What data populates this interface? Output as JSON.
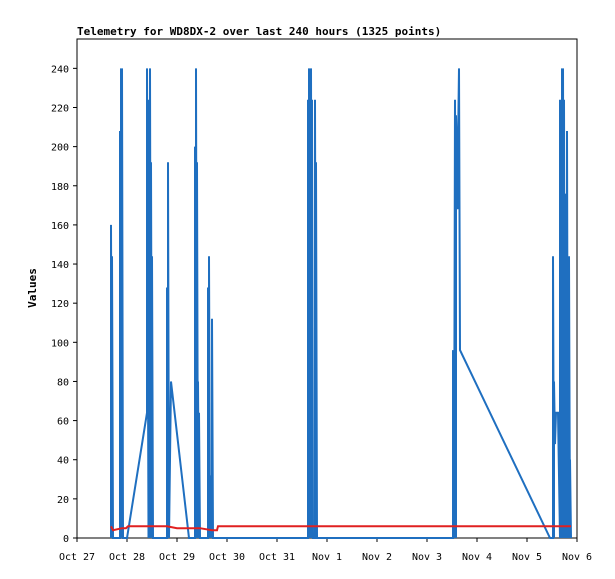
{
  "chart_data": {
    "type": "line",
    "title": "Telemetry for WD8DX-2 over last 240 hours (1325 points)",
    "xlabel": "",
    "ylabel": "Values",
    "ylim": [
      0,
      255
    ],
    "yticks": [
      0,
      20,
      40,
      60,
      80,
      100,
      120,
      140,
      160,
      180,
      200,
      220,
      240
    ],
    "xlim": [
      0,
      10
    ],
    "xticks": [
      {
        "label": "Oct 27",
        "x": 0
      },
      {
        "label": "Oct 28",
        "x": 1
      },
      {
        "label": "Oct 29",
        "x": 2
      },
      {
        "label": "Oct 30",
        "x": 3
      },
      {
        "label": "Oct 31",
        "x": 4
      },
      {
        "label": "Nov 1",
        "x": 5
      },
      {
        "label": "Nov 2",
        "x": 6
      },
      {
        "label": "Nov 3",
        "x": 7
      },
      {
        "label": "Nov 4",
        "x": 8
      },
      {
        "label": "Nov 5",
        "x": 9
      },
      {
        "label": "Nov 6",
        "x": 10
      }
    ],
    "grid": false,
    "series": [
      {
        "color": "#1f6fc0",
        "points": [
          [
            0.68,
            0
          ],
          [
            0.68,
            160
          ],
          [
            0.7,
            0
          ],
          [
            0.7,
            144
          ],
          [
            0.72,
            0
          ],
          [
            0.86,
            0
          ],
          [
            0.86,
            208
          ],
          [
            0.88,
            0
          ],
          [
            0.88,
            240
          ],
          [
            0.9,
            0
          ],
          [
            0.9,
            240
          ],
          [
            0.92,
            0
          ],
          [
            1.0,
            0
          ],
          [
            1.4,
            64
          ],
          [
            1.4,
            240
          ],
          [
            1.43,
            0
          ],
          [
            1.43,
            224
          ],
          [
            1.46,
            0
          ],
          [
            1.46,
            240
          ],
          [
            1.48,
            0
          ],
          [
            1.48,
            192
          ],
          [
            1.5,
            0
          ],
          [
            1.5,
            144
          ],
          [
            1.52,
            0
          ],
          [
            1.8,
            0
          ],
          [
            1.8,
            128
          ],
          [
            1.82,
            0
          ],
          [
            1.82,
            192
          ],
          [
            1.84,
            0
          ],
          [
            1.88,
            80
          ],
          [
            2.24,
            0
          ],
          [
            2.36,
            0
          ],
          [
            2.36,
            200
          ],
          [
            2.38,
            0
          ],
          [
            2.38,
            240
          ],
          [
            2.4,
            0
          ],
          [
            2.4,
            192
          ],
          [
            2.42,
            0
          ],
          [
            2.42,
            80
          ],
          [
            2.44,
            0
          ],
          [
            2.44,
            64
          ],
          [
            2.46,
            0
          ],
          [
            2.62,
            0
          ],
          [
            2.62,
            128
          ],
          [
            2.64,
            0
          ],
          [
            2.64,
            144
          ],
          [
            2.66,
            0
          ],
          [
            2.66,
            32
          ],
          [
            2.7,
            0
          ],
          [
            2.7,
            112
          ],
          [
            2.72,
            0
          ],
          [
            4.62,
            0
          ],
          [
            4.62,
            224
          ],
          [
            4.64,
            0
          ],
          [
            4.64,
            240
          ],
          [
            4.66,
            0
          ],
          [
            4.66,
            224
          ],
          [
            4.68,
            0
          ],
          [
            4.68,
            240
          ],
          [
            4.7,
            0
          ],
          [
            4.7,
            224
          ],
          [
            4.72,
            0
          ],
          [
            4.76,
            0
          ],
          [
            4.76,
            224
          ],
          [
            4.78,
            0
          ],
          [
            4.78,
            192
          ],
          [
            4.8,
            0
          ],
          [
            7.52,
            0
          ],
          [
            7.52,
            96
          ],
          [
            7.54,
            0
          ],
          [
            7.56,
            224
          ],
          [
            7.58,
            0
          ],
          [
            7.58,
            216
          ],
          [
            7.6,
            192
          ],
          [
            7.62,
            168
          ],
          [
            7.62,
            200
          ],
          [
            7.64,
            240
          ],
          [
            7.66,
            96
          ],
          [
            9.46,
            0
          ],
          [
            9.52,
            0
          ],
          [
            9.52,
            144
          ],
          [
            9.54,
            0
          ],
          [
            9.54,
            80
          ],
          [
            9.56,
            48
          ],
          [
            9.58,
            64
          ],
          [
            9.62,
            64
          ],
          [
            9.66,
            0
          ],
          [
            9.66,
            224
          ],
          [
            9.68,
            0
          ],
          [
            9.68,
            192
          ],
          [
            9.7,
            0
          ],
          [
            9.7,
            240
          ],
          [
            9.72,
            0
          ],
          [
            9.72,
            240
          ],
          [
            9.74,
            0
          ],
          [
            9.74,
            224
          ],
          [
            9.76,
            0
          ],
          [
            9.76,
            168
          ],
          [
            9.78,
            0
          ],
          [
            9.78,
            176
          ],
          [
            9.8,
            0
          ],
          [
            9.8,
            208
          ],
          [
            9.82,
            0
          ],
          [
            9.82,
            104
          ],
          [
            9.84,
            0
          ],
          [
            9.84,
            144
          ],
          [
            9.86,
            0
          ],
          [
            9.86,
            40
          ],
          [
            9.88,
            0
          ]
        ]
      },
      {
        "color": "#e02020",
        "points": [
          [
            0.68,
            6
          ],
          [
            0.72,
            4
          ],
          [
            0.9,
            5
          ],
          [
            0.98,
            5
          ],
          [
            1.02,
            6
          ],
          [
            1.5,
            6
          ],
          [
            1.8,
            6
          ],
          [
            2.0,
            5
          ],
          [
            2.24,
            5
          ],
          [
            2.3,
            5
          ],
          [
            2.46,
            5
          ],
          [
            2.7,
            4
          ],
          [
            2.8,
            4
          ],
          [
            2.82,
            6
          ],
          [
            4.62,
            6
          ],
          [
            4.8,
            6
          ],
          [
            7.5,
            6
          ],
          [
            7.66,
            6
          ],
          [
            9.46,
            6
          ],
          [
            9.88,
            6
          ]
        ]
      }
    ]
  }
}
